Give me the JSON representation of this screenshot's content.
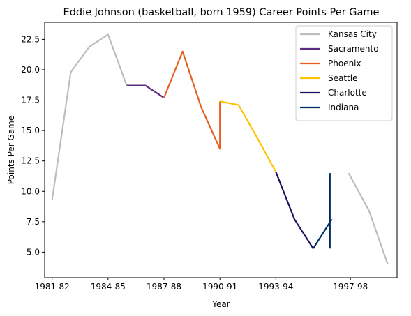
{
  "chart_data": {
    "type": "line",
    "title": "Eddie Johnson (basketball, born 1959) Career Points Per Game",
    "xlabel": "Year",
    "ylabel": "Points Per Game",
    "x_ticks": [
      "1981-82",
      "1984-85",
      "1987-88",
      "1990-91",
      "1993-94",
      "1997-98"
    ],
    "y_ticks": [
      "5.0",
      "7.5",
      "10.0",
      "12.5",
      "15.0",
      "17.5",
      "20.0",
      "22.5"
    ],
    "xlim": [
      1980.6,
      1999.5
    ],
    "ylim": [
      2.9,
      23.9
    ],
    "grid": false,
    "legend_position": "top-right",
    "series": [
      {
        "name": "Kansas City",
        "color": "#bdbdbd",
        "segments": [
          [
            [
              1981,
              9.3
            ],
            [
              1982,
              19.8
            ],
            [
              1983,
              21.9
            ],
            [
              1984,
              22.9
            ],
            [
              1985,
              18.7
            ]
          ],
          [
            [
              1996.9,
              11.5
            ],
            [
              1998,
              8.4
            ],
            [
              1999,
              4.0
            ]
          ]
        ]
      },
      {
        "name": "Sacramento",
        "color": "#5a2d81",
        "segments": [
          [
            [
              1985,
              18.7
            ],
            [
              1986,
              18.7
            ],
            [
              1987,
              17.7
            ]
          ]
        ]
      },
      {
        "name": "Phoenix",
        "color": "#e56020",
        "segments": [
          [
            [
              1987,
              17.7
            ],
            [
              1988,
              21.5
            ],
            [
              1989,
              16.9
            ],
            [
              1990,
              13.5
            ],
            [
              1990,
              17.4
            ]
          ]
        ]
      },
      {
        "name": "Seattle",
        "color": "#ffc200",
        "segments": [
          [
            [
              1990,
              17.4
            ],
            [
              1991,
              17.1
            ],
            [
              1992,
              14.4
            ],
            [
              1993,
              11.6
            ]
          ]
        ]
      },
      {
        "name": "Charlotte",
        "color": "#1d1160",
        "segments": [
          [
            [
              1993,
              11.6
            ],
            [
              1994,
              7.7
            ],
            [
              1995,
              5.3
            ]
          ]
        ]
      },
      {
        "name": "Indiana",
        "color": "#002d62",
        "segments": [
          [
            [
              1995,
              5.3
            ],
            [
              1996,
              7.7
            ]
          ],
          [
            [
              1995.9,
              5.3
            ],
            [
              1995.9,
              11.5
            ]
          ]
        ]
      }
    ]
  }
}
